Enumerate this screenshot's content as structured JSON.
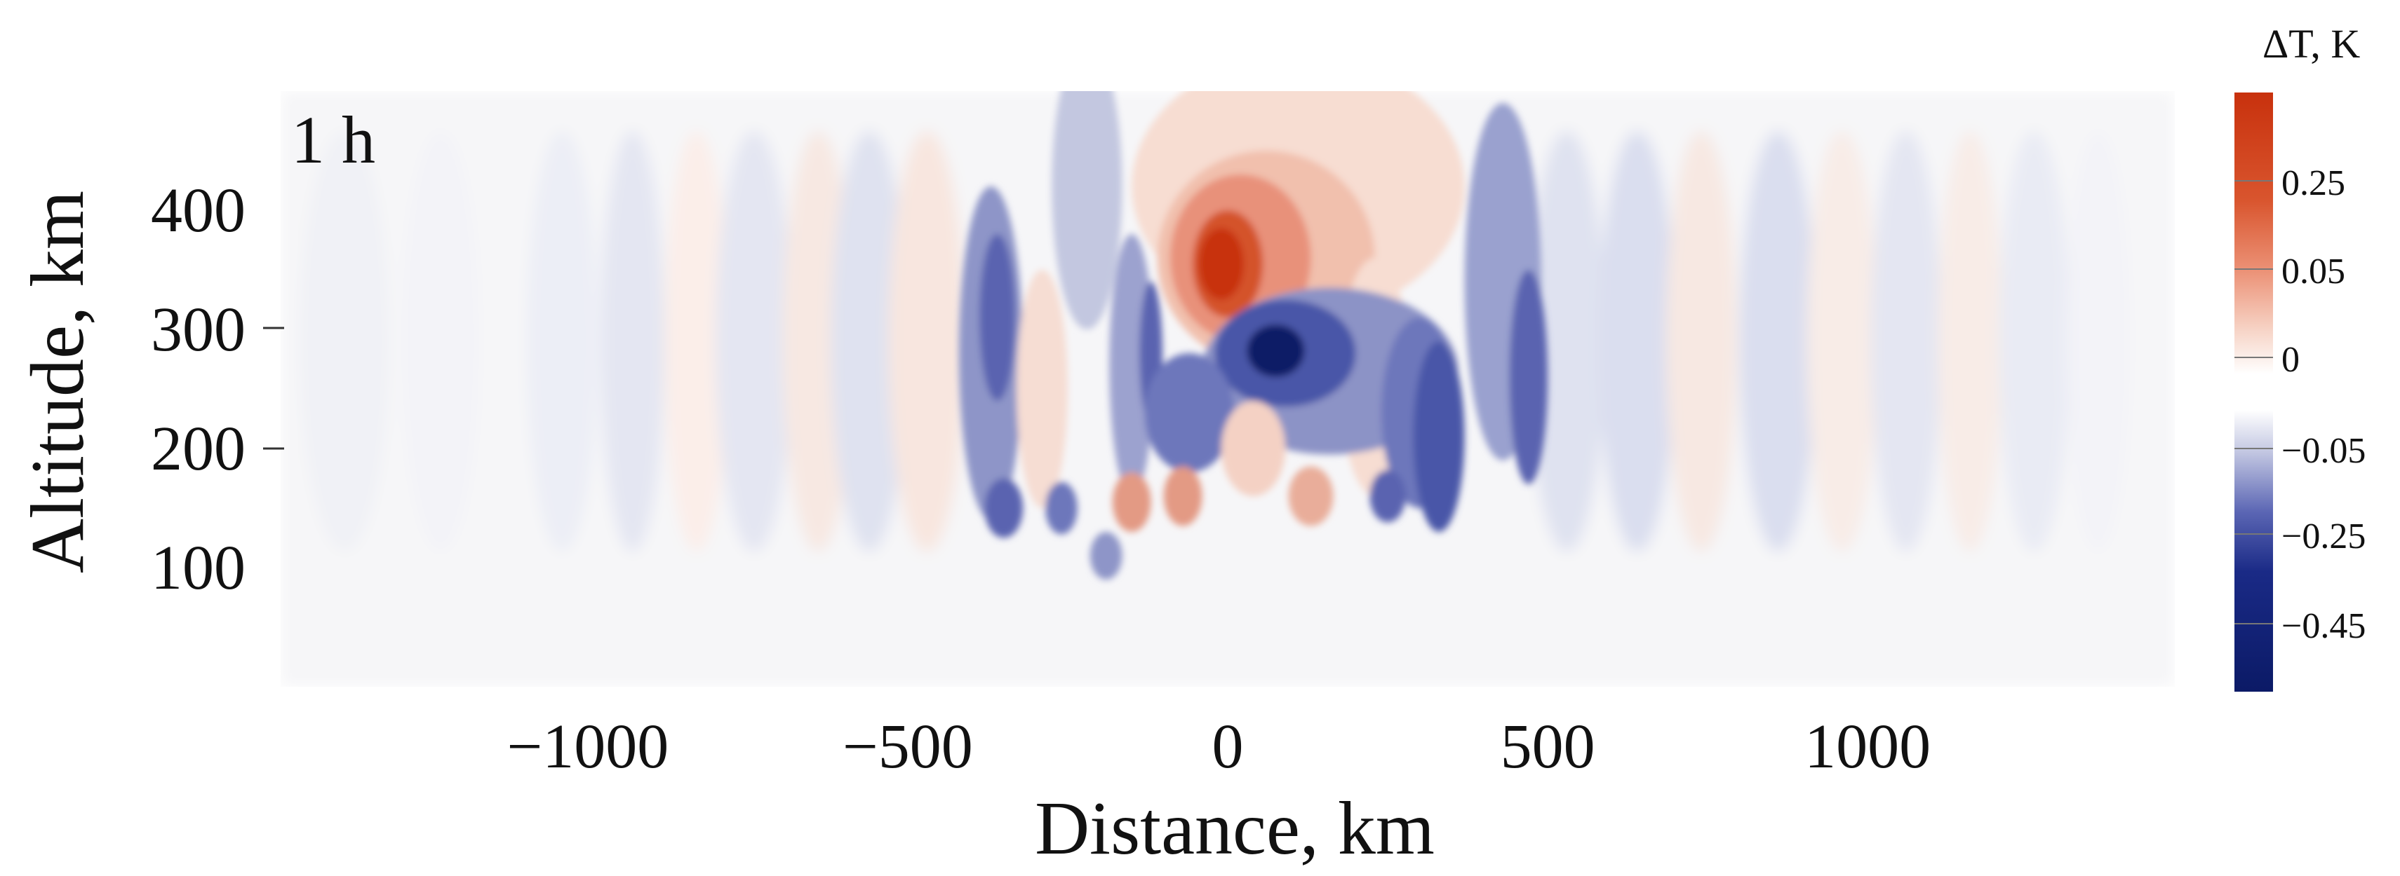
{
  "chart_data": {
    "type": "heatmap",
    "panel_label": "1 h",
    "xlabel": "Distance, km",
    "ylabel": "Altitude, km",
    "xlim": [
      -1480,
      1480
    ],
    "ylim": [
      0,
      500
    ],
    "x_ticks": [
      -1000,
      -500,
      0,
      500,
      1000
    ],
    "x_tick_labels": [
      "−1000",
      "−500",
      "0",
      "500",
      "1000"
    ],
    "y_ticks": [
      100,
      200,
      300,
      400
    ],
    "y_tick_labels": [
      "100",
      "200",
      "300",
      "400"
    ],
    "colorbar": {
      "title": "ΔT, K",
      "range": [
        -0.55,
        0.55
      ],
      "ticks": [
        0.25,
        0.05,
        0,
        -0.05,
        -0.25,
        -0.45
      ],
      "tick_labels": [
        "0.25",
        "0.05",
        "0",
        "−0.05",
        "−0.25",
        "−0.45"
      ],
      "colors": {
        "negative_max": "#0b1a66",
        "negative_mid": "#4a56a8",
        "neutral": "#ffffff",
        "positive_mid": "#f2a98e",
        "positive_max": "#c8310d"
      }
    },
    "features": [
      {
        "kind": "warm_core",
        "x": 0,
        "y": 355,
        "dT": 0.35
      },
      {
        "kind": "cold_core",
        "x": 80,
        "y": 280,
        "dT": -0.4
      },
      {
        "kind": "cold_lobe",
        "x": -370,
        "y": 300,
        "dT": -0.12
      },
      {
        "kind": "cold_lobe",
        "x": 470,
        "y": 260,
        "dT": -0.1
      }
    ],
    "grid": false,
    "legend": "colorbar-right"
  }
}
